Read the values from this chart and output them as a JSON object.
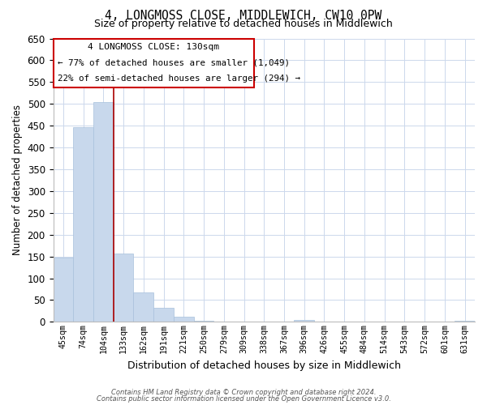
{
  "title": "4, LONGMOSS CLOSE, MIDDLEWICH, CW10 0PW",
  "subtitle": "Size of property relative to detached houses in Middlewich",
  "xlabel": "Distribution of detached houses by size in Middlewich",
  "ylabel": "Number of detached properties",
  "bar_color": "#c8d8ec",
  "bar_edge_color": "#a8c0dc",
  "background_color": "#ffffff",
  "grid_color": "#ccd8ec",
  "annotation_box_edge": "#cc0000",
  "vline_color": "#aa0000",
  "categories": [
    "45sqm",
    "74sqm",
    "104sqm",
    "133sqm",
    "162sqm",
    "191sqm",
    "221sqm",
    "250sqm",
    "279sqm",
    "309sqm",
    "338sqm",
    "367sqm",
    "396sqm",
    "426sqm",
    "455sqm",
    "484sqm",
    "514sqm",
    "543sqm",
    "572sqm",
    "601sqm",
    "631sqm"
  ],
  "values": [
    148,
    447,
    505,
    157,
    67,
    32,
    12,
    2,
    0,
    0,
    0,
    0,
    5,
    0,
    0,
    0,
    0,
    0,
    0,
    0,
    2
  ],
  "vline_position": 2.5,
  "annotation_title": "4 LONGMOSS CLOSE: 130sqm",
  "annotation_line1": "← 77% of detached houses are smaller (1,049)",
  "annotation_line2": "22% of semi-detached houses are larger (294) →",
  "ylim": [
    0,
    650
  ],
  "yticks": [
    0,
    50,
    100,
    150,
    200,
    250,
    300,
    350,
    400,
    450,
    500,
    550,
    600,
    650
  ],
  "footer1": "Contains HM Land Registry data © Crown copyright and database right 2024.",
  "footer2": "Contains public sector information licensed under the Open Government Licence v3.0."
}
